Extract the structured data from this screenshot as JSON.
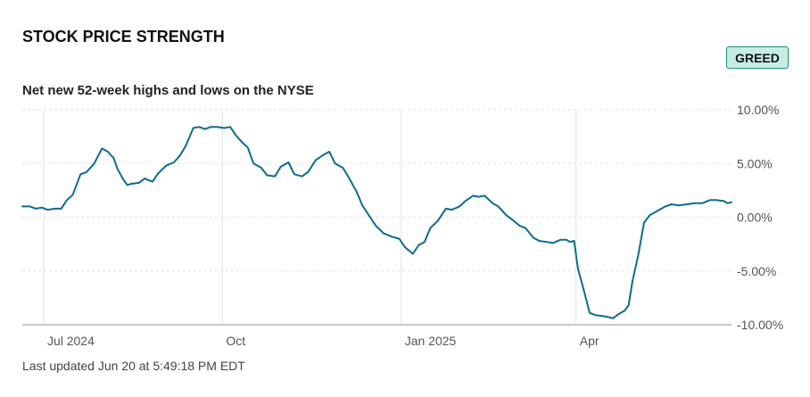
{
  "header": {
    "title": "STOCK PRICE STRENGTH",
    "badge": "GREED",
    "subtitle": "Net new 52-week highs and lows on the NYSE"
  },
  "footer": {
    "updated": "Last updated Jun 20 at 5:49:18 PM EDT"
  },
  "colors": {
    "line": "#0e6a91",
    "badge_bg": "#c6ece4",
    "badge_border": "#1f8f7d",
    "grid": "#e2e2e2",
    "axis": "#b5b5b5"
  },
  "chart_data": {
    "type": "line",
    "title": "Net new 52-week highs and lows on the NYSE",
    "x_range": [
      "2024-06-20",
      "2025-06-20"
    ],
    "ylim": [
      -10,
      10
    ],
    "y_ticks": [
      {
        "value": 10,
        "label": "10.00%"
      },
      {
        "value": 5,
        "label": "5.00%"
      },
      {
        "value": 0,
        "label": "0.00%"
      },
      {
        "value": -5,
        "label": "-5.00%"
      },
      {
        "value": -10,
        "label": "-10.00%"
      }
    ],
    "x_ticks": [
      {
        "date": "2024-07-01",
        "label": "Jul 2024"
      },
      {
        "date": "2024-10-01",
        "label": "Oct"
      },
      {
        "date": "2025-01-01",
        "label": "Jan 2025"
      },
      {
        "date": "2025-04-01",
        "label": "Apr"
      }
    ],
    "grid": true,
    "series": [
      {
        "points": [
          [
            "2024-06-20",
            1.0
          ],
          [
            "2024-06-24",
            1.0
          ],
          [
            "2024-06-27",
            0.8
          ],
          [
            "2024-06-30",
            0.9
          ],
          [
            "2024-07-03",
            0.7
          ],
          [
            "2024-07-07",
            0.8
          ],
          [
            "2024-07-10",
            0.8
          ],
          [
            "2024-07-13",
            1.6
          ],
          [
            "2024-07-16",
            2.1
          ],
          [
            "2024-07-20",
            4.0
          ],
          [
            "2024-07-23",
            4.2
          ],
          [
            "2024-07-27",
            5.0
          ],
          [
            "2024-07-31",
            6.4
          ],
          [
            "2024-08-03",
            6.1
          ],
          [
            "2024-08-06",
            5.5
          ],
          [
            "2024-08-08",
            4.5
          ],
          [
            "2024-08-11",
            3.5
          ],
          [
            "2024-08-13",
            3.0
          ],
          [
            "2024-08-15",
            3.1
          ],
          [
            "2024-08-19",
            3.2
          ],
          [
            "2024-08-22",
            3.6
          ],
          [
            "2024-08-26",
            3.3
          ],
          [
            "2024-08-29",
            4.1
          ],
          [
            "2024-09-02",
            4.8
          ],
          [
            "2024-09-06",
            5.1
          ],
          [
            "2024-09-09",
            5.7
          ],
          [
            "2024-09-12",
            6.6
          ],
          [
            "2024-09-16",
            8.3
          ],
          [
            "2024-09-19",
            8.4
          ],
          [
            "2024-09-22",
            8.2
          ],
          [
            "2024-09-25",
            8.4
          ],
          [
            "2024-09-28",
            8.4
          ],
          [
            "2024-10-02",
            8.3
          ],
          [
            "2024-10-05",
            8.4
          ],
          [
            "2024-10-08",
            7.6
          ],
          [
            "2024-10-11",
            7.0
          ],
          [
            "2024-10-14",
            6.5
          ],
          [
            "2024-10-17",
            5.0
          ],
          [
            "2024-10-21",
            4.6
          ],
          [
            "2024-10-24",
            3.9
          ],
          [
            "2024-10-28",
            3.8
          ],
          [
            "2024-10-31",
            4.7
          ],
          [
            "2024-11-04",
            5.1
          ],
          [
            "2024-11-07",
            4.0
          ],
          [
            "2024-11-11",
            3.8
          ],
          [
            "2024-11-14",
            4.2
          ],
          [
            "2024-11-18",
            5.3
          ],
          [
            "2024-11-22",
            5.8
          ],
          [
            "2024-11-25",
            6.1
          ],
          [
            "2024-11-28",
            5.0
          ],
          [
            "2024-12-02",
            4.6
          ],
          [
            "2024-12-05",
            3.7
          ],
          [
            "2024-12-09",
            2.4
          ],
          [
            "2024-12-12",
            1.1
          ],
          [
            "2024-12-16",
            0.0
          ],
          [
            "2024-12-19",
            -0.8
          ],
          [
            "2024-12-23",
            -1.5
          ],
          [
            "2024-12-27",
            -1.8
          ],
          [
            "2024-12-31",
            -2.0
          ],
          [
            "2025-01-03",
            -2.8
          ],
          [
            "2025-01-07",
            -3.4
          ],
          [
            "2025-01-10",
            -2.6
          ],
          [
            "2025-01-13",
            -2.3
          ],
          [
            "2025-01-16",
            -1.0
          ],
          [
            "2025-01-20",
            -0.3
          ],
          [
            "2025-01-24",
            0.8
          ],
          [
            "2025-01-27",
            0.7
          ],
          [
            "2025-01-31",
            1.0
          ],
          [
            "2025-02-03",
            1.5
          ],
          [
            "2025-02-07",
            2.0
          ],
          [
            "2025-02-10",
            1.9
          ],
          [
            "2025-02-13",
            2.0
          ],
          [
            "2025-02-17",
            1.3
          ],
          [
            "2025-02-20",
            1.0
          ],
          [
            "2025-02-24",
            0.2
          ],
          [
            "2025-02-27",
            -0.2
          ],
          [
            "2025-03-03",
            -0.8
          ],
          [
            "2025-03-06",
            -1.0
          ],
          [
            "2025-03-10",
            -1.9
          ],
          [
            "2025-03-13",
            -2.2
          ],
          [
            "2025-03-17",
            -2.3
          ],
          [
            "2025-03-20",
            -2.4
          ],
          [
            "2025-03-24",
            -2.1
          ],
          [
            "2025-03-27",
            -2.1
          ],
          [
            "2025-03-29",
            -2.3
          ],
          [
            "2025-03-31",
            -2.2
          ],
          [
            "2025-04-02",
            -4.8
          ],
          [
            "2025-04-05",
            -6.8
          ],
          [
            "2025-04-08",
            -8.9
          ],
          [
            "2025-04-11",
            -9.1
          ],
          [
            "2025-04-15",
            -9.2
          ],
          [
            "2025-04-18",
            -9.3
          ],
          [
            "2025-04-20",
            -9.4
          ],
          [
            "2025-04-23",
            -9.0
          ],
          [
            "2025-04-26",
            -8.7
          ],
          [
            "2025-04-28",
            -8.2
          ],
          [
            "2025-04-30",
            -6.0
          ],
          [
            "2025-05-03",
            -3.5
          ],
          [
            "2025-05-06",
            -0.5
          ],
          [
            "2025-05-09",
            0.2
          ],
          [
            "2025-05-13",
            0.6
          ],
          [
            "2025-05-17",
            1.0
          ],
          [
            "2025-05-20",
            1.2
          ],
          [
            "2025-05-24",
            1.1
          ],
          [
            "2025-05-28",
            1.2
          ],
          [
            "2025-06-01",
            1.3
          ],
          [
            "2025-06-05",
            1.3
          ],
          [
            "2025-06-09",
            1.6
          ],
          [
            "2025-06-12",
            1.6
          ],
          [
            "2025-06-16",
            1.5
          ],
          [
            "2025-06-18",
            1.3
          ],
          [
            "2025-06-20",
            1.4
          ]
        ]
      }
    ]
  }
}
